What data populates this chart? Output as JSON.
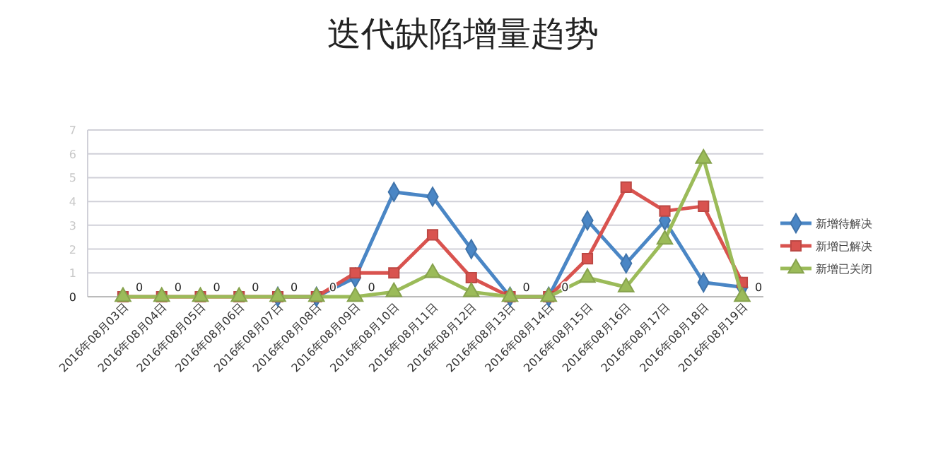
{
  "chart_data": {
    "type": "line",
    "title": "迭代缺陷增量趋势",
    "ylim": [
      0,
      7
    ],
    "yticks": [
      0,
      1,
      2,
      3,
      4,
      5,
      6,
      7
    ],
    "grid": "y",
    "legend": "right",
    "categories": [
      "2016年08月03日",
      "2016年08月04日",
      "2016年08月05日",
      "2016年08月06日",
      "2016年08月07日",
      "2016年08月08日",
      "2016年08月09日",
      "2016年08月10日",
      "2016年08月11日",
      "2016年08月12日",
      "2016年08月13日",
      "2016年08月14日",
      "2016年08月15日",
      "2016年08月16日",
      "2016年08月17日",
      "2016年08月18日",
      "2016年08月19日"
    ],
    "series": [
      {
        "name": "新增待解决",
        "color": "#4a86c5",
        "marker": "diamond",
        "values": [
          null,
          null,
          null,
          null,
          0,
          0,
          0.8,
          4.4,
          4.2,
          2.0,
          0,
          0,
          3.2,
          1.4,
          3.2,
          0.6,
          0.4
        ]
      },
      {
        "name": "新增已解决",
        "color": "#d9534f",
        "marker": "square",
        "values": [
          0,
          0,
          0,
          0,
          0,
          0,
          1,
          1,
          2.6,
          0.8,
          0,
          0,
          1.6,
          4.6,
          3.6,
          3.8,
          0.6
        ]
      },
      {
        "name": "新增已关闭",
        "color": "#9bbb59",
        "marker": "triangle",
        "values": [
          0,
          0,
          0,
          0,
          0,
          0,
          0,
          0.2,
          1,
          0.2,
          0,
          0,
          0.8,
          0.4,
          2.4,
          5.8,
          0
        ],
        "value_labels": [
          "0",
          "0",
          "0",
          "0",
          "0",
          "0",
          "0",
          null,
          null,
          null,
          "0",
          "0",
          null,
          null,
          null,
          null,
          "0"
        ]
      }
    ]
  }
}
